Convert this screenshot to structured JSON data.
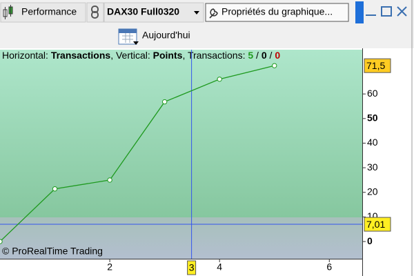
{
  "toolbar": {
    "performance": "Performance",
    "instrument": "DAX30 Full0320",
    "properties": "Propriétés du graphique...",
    "today": "Aujourd'hui"
  },
  "chart_data": {
    "type": "line",
    "legend_segments": [
      {
        "text": "Horizontal: ",
        "style": "normal"
      },
      {
        "text": "Transactions",
        "style": "bold"
      },
      {
        "text": ", Vertical: ",
        "style": "normal"
      },
      {
        "text": "Points",
        "style": "bold"
      },
      {
        "text": ", Transactions: ",
        "style": "normal"
      },
      {
        "text": "5",
        "style": "green"
      },
      {
        "text": " / ",
        "style": "normal"
      },
      {
        "text": "0",
        "style": "black"
      },
      {
        "text": " / ",
        "style": "normal"
      },
      {
        "text": "0",
        "style": "red"
      }
    ],
    "watermark": "© ProRealTime Trading",
    "x": [
      0,
      1,
      2,
      3,
      4,
      5
    ],
    "series": [
      {
        "color": "#1f9a1f",
        "values": [
          0,
          21.4,
          25,
          56.8,
          66,
          71.5
        ],
        "value_labels": [
          null,
          null,
          null,
          null,
          null,
          "71,5"
        ]
      }
    ],
    "xlim": [
      0,
      6.6
    ],
    "xticks": [
      2,
      4,
      6
    ],
    "ylim": [
      -7,
      78
    ],
    "yticks": [
      0,
      10,
      20,
      30,
      40,
      50,
      60
    ],
    "bold_yticks": [
      0,
      50
    ],
    "grid": false,
    "cursor": {
      "x": {
        "value": 3.49,
        "label": "3"
      },
      "y": {
        "value": 7.01,
        "label": "7,01"
      }
    }
  }
}
